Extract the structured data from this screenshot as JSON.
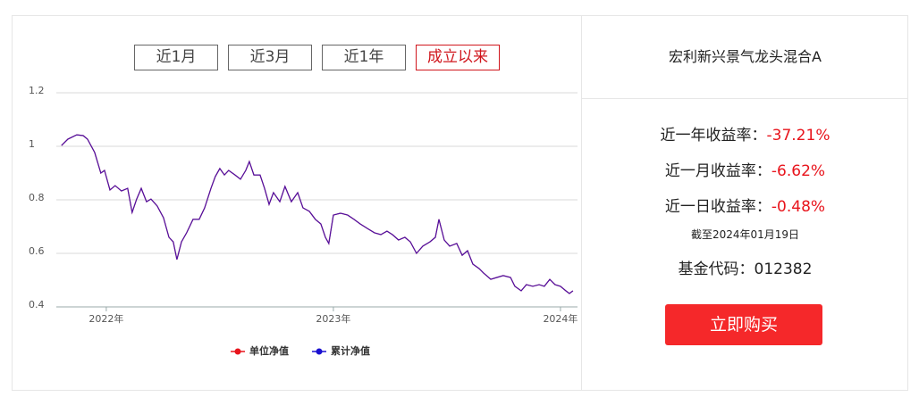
{
  "tabs": [
    "近1月",
    "近3月",
    "近1年",
    "成立以来"
  ],
  "active_tab": 3,
  "chart_data": {
    "type": "line",
    "x": [
      2021.803,
      2021.831,
      2021.87,
      2021.898,
      2021.917,
      2021.949,
      2021.976,
      2021.992,
      2022.016,
      2022.039,
      2022.067,
      2022.094,
      2022.114,
      2022.134,
      2022.154,
      2022.177,
      2022.197,
      2022.224,
      2022.252,
      2022.276,
      2022.295,
      2022.311,
      2022.331,
      2022.354,
      2022.382,
      2022.409,
      2022.433,
      2022.461,
      2022.48,
      2022.5,
      2022.52,
      2022.539,
      2022.567,
      2022.591,
      2022.614,
      2022.63,
      2022.65,
      2022.677,
      2022.697,
      2022.717,
      2022.736,
      2022.764,
      2022.787,
      2022.815,
      2022.843,
      2022.866,
      2022.894,
      2022.921,
      2022.945,
      2022.965,
      2022.98,
      2023.0,
      2023.031,
      2023.063,
      2023.091,
      2023.118,
      2023.15,
      2023.181,
      2023.209,
      2023.236,
      2023.26,
      2023.287,
      2023.315,
      2023.339,
      2023.366,
      2023.394,
      2023.425,
      2023.449,
      2023.465,
      2023.488,
      2023.512,
      2023.543,
      2023.567,
      2023.591,
      2023.614,
      2023.642,
      2023.661,
      2023.693,
      2023.72,
      2023.748,
      2023.78,
      2023.799,
      2023.827,
      2023.85,
      2023.878,
      2023.906,
      2023.929,
      2023.953,
      2023.976,
      2024.0,
      2024.024,
      2024.039,
      2024.055
    ],
    "series": [
      {
        "name": "单位净值",
        "color": "#e8141c",
        "values": [
          1.003,
          1.027,
          1.043,
          1.04,
          1.027,
          0.977,
          0.9,
          0.91,
          0.837,
          0.853,
          0.833,
          0.843,
          0.753,
          0.803,
          0.843,
          0.793,
          0.803,
          0.777,
          0.733,
          0.66,
          0.643,
          0.577,
          0.643,
          0.677,
          0.727,
          0.727,
          0.77,
          0.843,
          0.887,
          0.917,
          0.893,
          0.91,
          0.893,
          0.877,
          0.91,
          0.943,
          0.893,
          0.893,
          0.843,
          0.783,
          0.827,
          0.793,
          0.85,
          0.793,
          0.827,
          0.77,
          0.757,
          0.727,
          0.71,
          0.66,
          0.637,
          0.743,
          0.75,
          0.743,
          0.727,
          0.71,
          0.693,
          0.677,
          0.67,
          0.683,
          0.67,
          0.65,
          0.66,
          0.643,
          0.6,
          0.627,
          0.643,
          0.66,
          0.727,
          0.65,
          0.627,
          0.637,
          0.593,
          0.61,
          0.56,
          0.543,
          0.527,
          0.503,
          0.51,
          0.517,
          0.51,
          0.477,
          0.46,
          0.483,
          0.477,
          0.483,
          0.477,
          0.503,
          0.483,
          0.477,
          0.46,
          0.45,
          0.46
        ]
      },
      {
        "name": "累计净值",
        "color": "#1a10d0",
        "values": [
          1.003,
          1.027,
          1.043,
          1.04,
          1.027,
          0.977,
          0.9,
          0.91,
          0.837,
          0.853,
          0.833,
          0.843,
          0.753,
          0.803,
          0.843,
          0.793,
          0.803,
          0.777,
          0.733,
          0.66,
          0.643,
          0.577,
          0.643,
          0.677,
          0.727,
          0.727,
          0.77,
          0.843,
          0.887,
          0.917,
          0.893,
          0.91,
          0.893,
          0.877,
          0.91,
          0.943,
          0.893,
          0.893,
          0.843,
          0.783,
          0.827,
          0.793,
          0.85,
          0.793,
          0.827,
          0.77,
          0.757,
          0.727,
          0.71,
          0.66,
          0.637,
          0.743,
          0.75,
          0.743,
          0.727,
          0.71,
          0.693,
          0.677,
          0.67,
          0.683,
          0.67,
          0.65,
          0.66,
          0.643,
          0.6,
          0.627,
          0.643,
          0.66,
          0.727,
          0.65,
          0.627,
          0.637,
          0.593,
          0.61,
          0.56,
          0.543,
          0.527,
          0.503,
          0.51,
          0.517,
          0.51,
          0.477,
          0.46,
          0.483,
          0.477,
          0.483,
          0.477,
          0.503,
          0.483,
          0.477,
          0.46,
          0.45,
          0.46
        ]
      }
    ],
    "xlim": [
      2021.78,
      2024.075
    ],
    "xticks": [
      {
        "value": 2022,
        "label": "2022年"
      },
      {
        "value": 2023,
        "label": "2023年"
      },
      {
        "value": 2024,
        "label": "2024年"
      }
    ],
    "ylim": [
      0.4,
      1.2
    ],
    "yticks": [
      0.4,
      0.6,
      0.8,
      1,
      1.2
    ],
    "grid": true
  },
  "fund": {
    "name": "宏利新兴景气龙头混合A",
    "stats": [
      {
        "label": "近一年收益率：",
        "value": "-37.21%"
      },
      {
        "label": "近一月收益率：",
        "value": "-6.62%"
      },
      {
        "label": "近一日收益率：",
        "value": "-0.48%"
      }
    ],
    "as_of": "截至2024年01月19日",
    "code": "基金代码：012382",
    "buy_button": "立即购买"
  }
}
